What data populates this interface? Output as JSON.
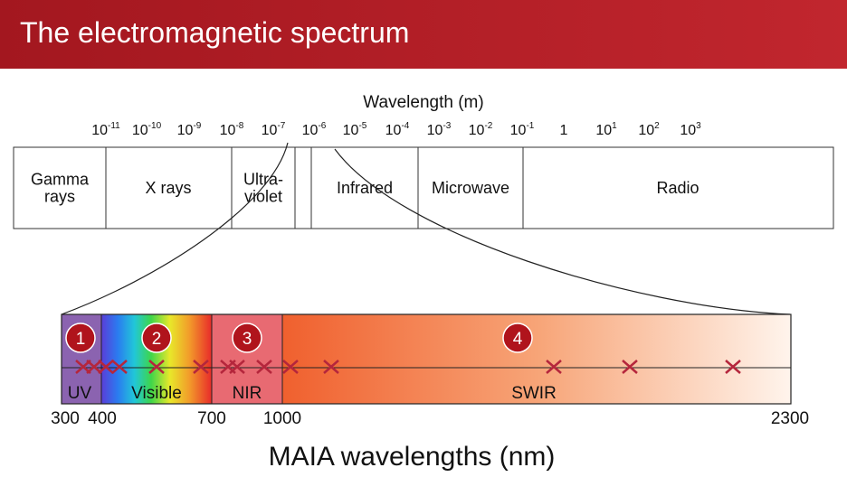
{
  "header": {
    "title": "The electromagnetic spectrum"
  },
  "spectrum": {
    "axis_title": "Wavelength (m)",
    "ticks": [
      {
        "base": "10",
        "exp": "-11"
      },
      {
        "base": "10",
        "exp": "-10"
      },
      {
        "base": "10",
        "exp": "-9"
      },
      {
        "base": "10",
        "exp": "-8"
      },
      {
        "base": "10",
        "exp": "-7"
      },
      {
        "base": "10",
        "exp": "-6"
      },
      {
        "base": "10",
        "exp": "-5"
      },
      {
        "base": "10",
        "exp": "-4"
      },
      {
        "base": "10",
        "exp": "-3"
      },
      {
        "base": "10",
        "exp": "-2"
      },
      {
        "base": "10",
        "exp": "-1"
      },
      {
        "base": "1"
      },
      {
        "base": "10",
        "exp": "1"
      },
      {
        "base": "10",
        "exp": "2"
      },
      {
        "base": "10",
        "exp": "3"
      }
    ],
    "bands": [
      {
        "lines": [
          "Gamma",
          "rays"
        ]
      },
      {
        "lines": [
          "X rays"
        ]
      },
      {
        "lines": [
          "Ultra-",
          "violet"
        ]
      },
      {
        "lines": [
          "Infrared"
        ]
      },
      {
        "lines": [
          "Microwave"
        ]
      },
      {
        "lines": [
          "Radio"
        ]
      }
    ]
  },
  "maia": {
    "regions": [
      {
        "number": "1",
        "label": "UV"
      },
      {
        "number": "2",
        "label": "Visible"
      },
      {
        "number": "3",
        "label": "NIR"
      },
      {
        "number": "4",
        "label": "SWIR"
      }
    ],
    "axis_labels": [
      "300",
      "400",
      "700",
      "1000",
      "2300"
    ],
    "axis_title": "MAIA wavelengths (nm)"
  }
}
